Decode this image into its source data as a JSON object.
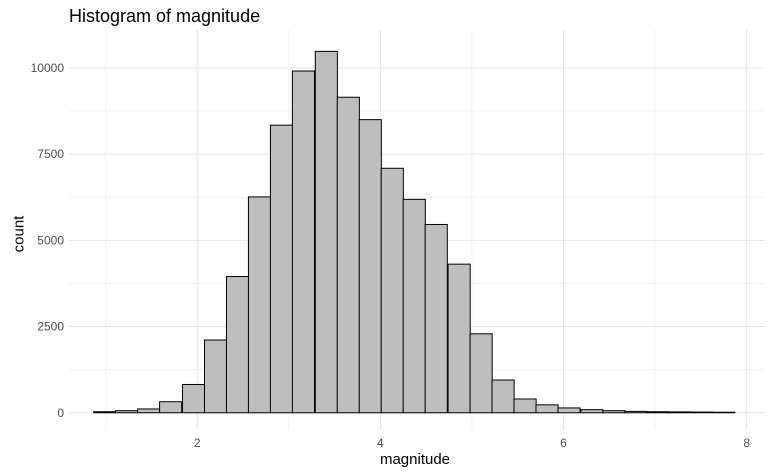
{
  "chart_data": {
    "type": "bar",
    "title": "Histogram of magnitude",
    "xlabel": "magnitude",
    "ylabel": "count",
    "xlim": [
      0.6,
      8.2
    ],
    "ylim": [
      -500,
      11100
    ],
    "x_ticks": [
      2,
      4,
      6,
      8
    ],
    "y_ticks": [
      0,
      2500,
      5000,
      7500,
      10000
    ],
    "x_tick_labels": [
      "2",
      "4",
      "6",
      "8"
    ],
    "y_tick_labels": [
      "0",
      "2500",
      "5000",
      "7500",
      "10000"
    ],
    "grid": true,
    "bar_fill": "#bebebe",
    "bar_outline": "#000000",
    "bin_width": 0.2414,
    "bin_centers": [
      0.99,
      1.23,
      1.47,
      1.71,
      1.96,
      2.2,
      2.44,
      2.68,
      2.92,
      3.16,
      3.41,
      3.65,
      3.89,
      4.13,
      4.37,
      4.61,
      4.86,
      5.1,
      5.34,
      5.58,
      5.82,
      6.06,
      6.31,
      6.55,
      6.79,
      7.03,
      7.27,
      7.51,
      7.75
    ],
    "values": [
      30,
      60,
      110,
      320,
      820,
      2110,
      3950,
      6260,
      8340,
      9910,
      10480,
      9150,
      8500,
      7090,
      6190,
      5460,
      4310,
      2290,
      950,
      400,
      230,
      140,
      90,
      60,
      40,
      30,
      25,
      20,
      15
    ]
  }
}
